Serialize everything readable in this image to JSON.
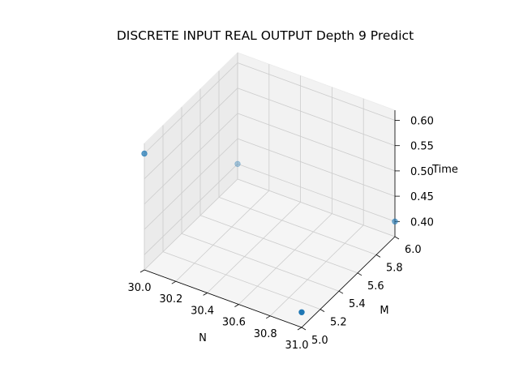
{
  "chart_data": {
    "type": "scatter",
    "projection": "3d",
    "title": "DISCRETE INPUT REAL OUTPUT Depth 9 Predict",
    "xlabel": "N",
    "ylabel": "M",
    "zlabel": "Time",
    "xlim": [
      30.0,
      31.0
    ],
    "ylim": [
      5.0,
      6.0
    ],
    "zlim": [
      0.37,
      0.62
    ],
    "x_ticks": [
      30.0,
      30.2,
      30.4,
      30.6,
      30.8,
      31.0
    ],
    "x_tick_labels": [
      "30.0",
      "30.2",
      "30.4",
      "30.6",
      "30.8",
      "31.0"
    ],
    "y_ticks": [
      5.0,
      5.2,
      5.4,
      5.6,
      5.8,
      6.0
    ],
    "y_tick_labels": [
      "5.0",
      "5.2",
      "5.4",
      "5.6",
      "5.8",
      "6.0"
    ],
    "z_ticks": [
      0.4,
      0.45,
      0.5,
      0.55,
      0.6
    ],
    "z_tick_labels": [
      "0.40",
      "0.45",
      "0.50",
      "0.55",
      "0.60"
    ],
    "grid": true,
    "points": [
      {
        "x": 30.0,
        "y": 5.0,
        "z": 0.6
      },
      {
        "x": 31.0,
        "y": 5.0,
        "z": 0.4
      },
      {
        "x": 30.0,
        "y": 6.0,
        "z": 0.4
      },
      {
        "x": 31.0,
        "y": 6.0,
        "z": 0.4
      }
    ],
    "colors": {
      "marker": "#1f77b4",
      "pane_left": "#ebebeb",
      "pane_back": "#f2f2f2",
      "pane_floor": "#f5f5f5",
      "grid": "#cccccc"
    }
  }
}
